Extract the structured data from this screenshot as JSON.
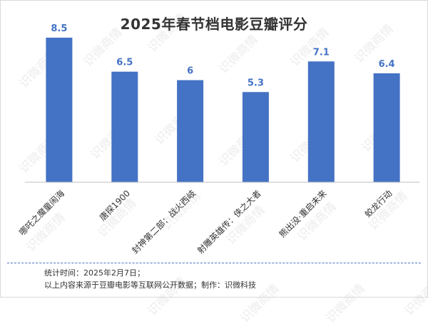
{
  "chart_data": {
    "type": "bar",
    "title": "2025年春节档电影豆瓣评分",
    "categories": [
      "哪吒之魔童闹海",
      "唐探1900",
      "封神第二部：战火西岐",
      "射雕英雄传：侠之大者",
      "熊出没·重启未来",
      "蛟龙行动"
    ],
    "values": [
      8.5,
      6.5,
      6,
      5.3,
      7.1,
      6.4
    ],
    "value_labels": [
      "8.5",
      "6.5",
      "6",
      "5.3",
      "7.1",
      "6.4"
    ],
    "ylim": [
      0,
      10
    ],
    "grid": false,
    "bar_color": "#4472c4",
    "label_color": "#4472c4"
  },
  "watermark": {
    "text": "识微商情"
  },
  "footnote": {
    "line1": "统计时间：2025年2月7日；",
    "line2": "以上内容来源于豆瓣电影等互联网公开数据；制作：识微科技"
  }
}
